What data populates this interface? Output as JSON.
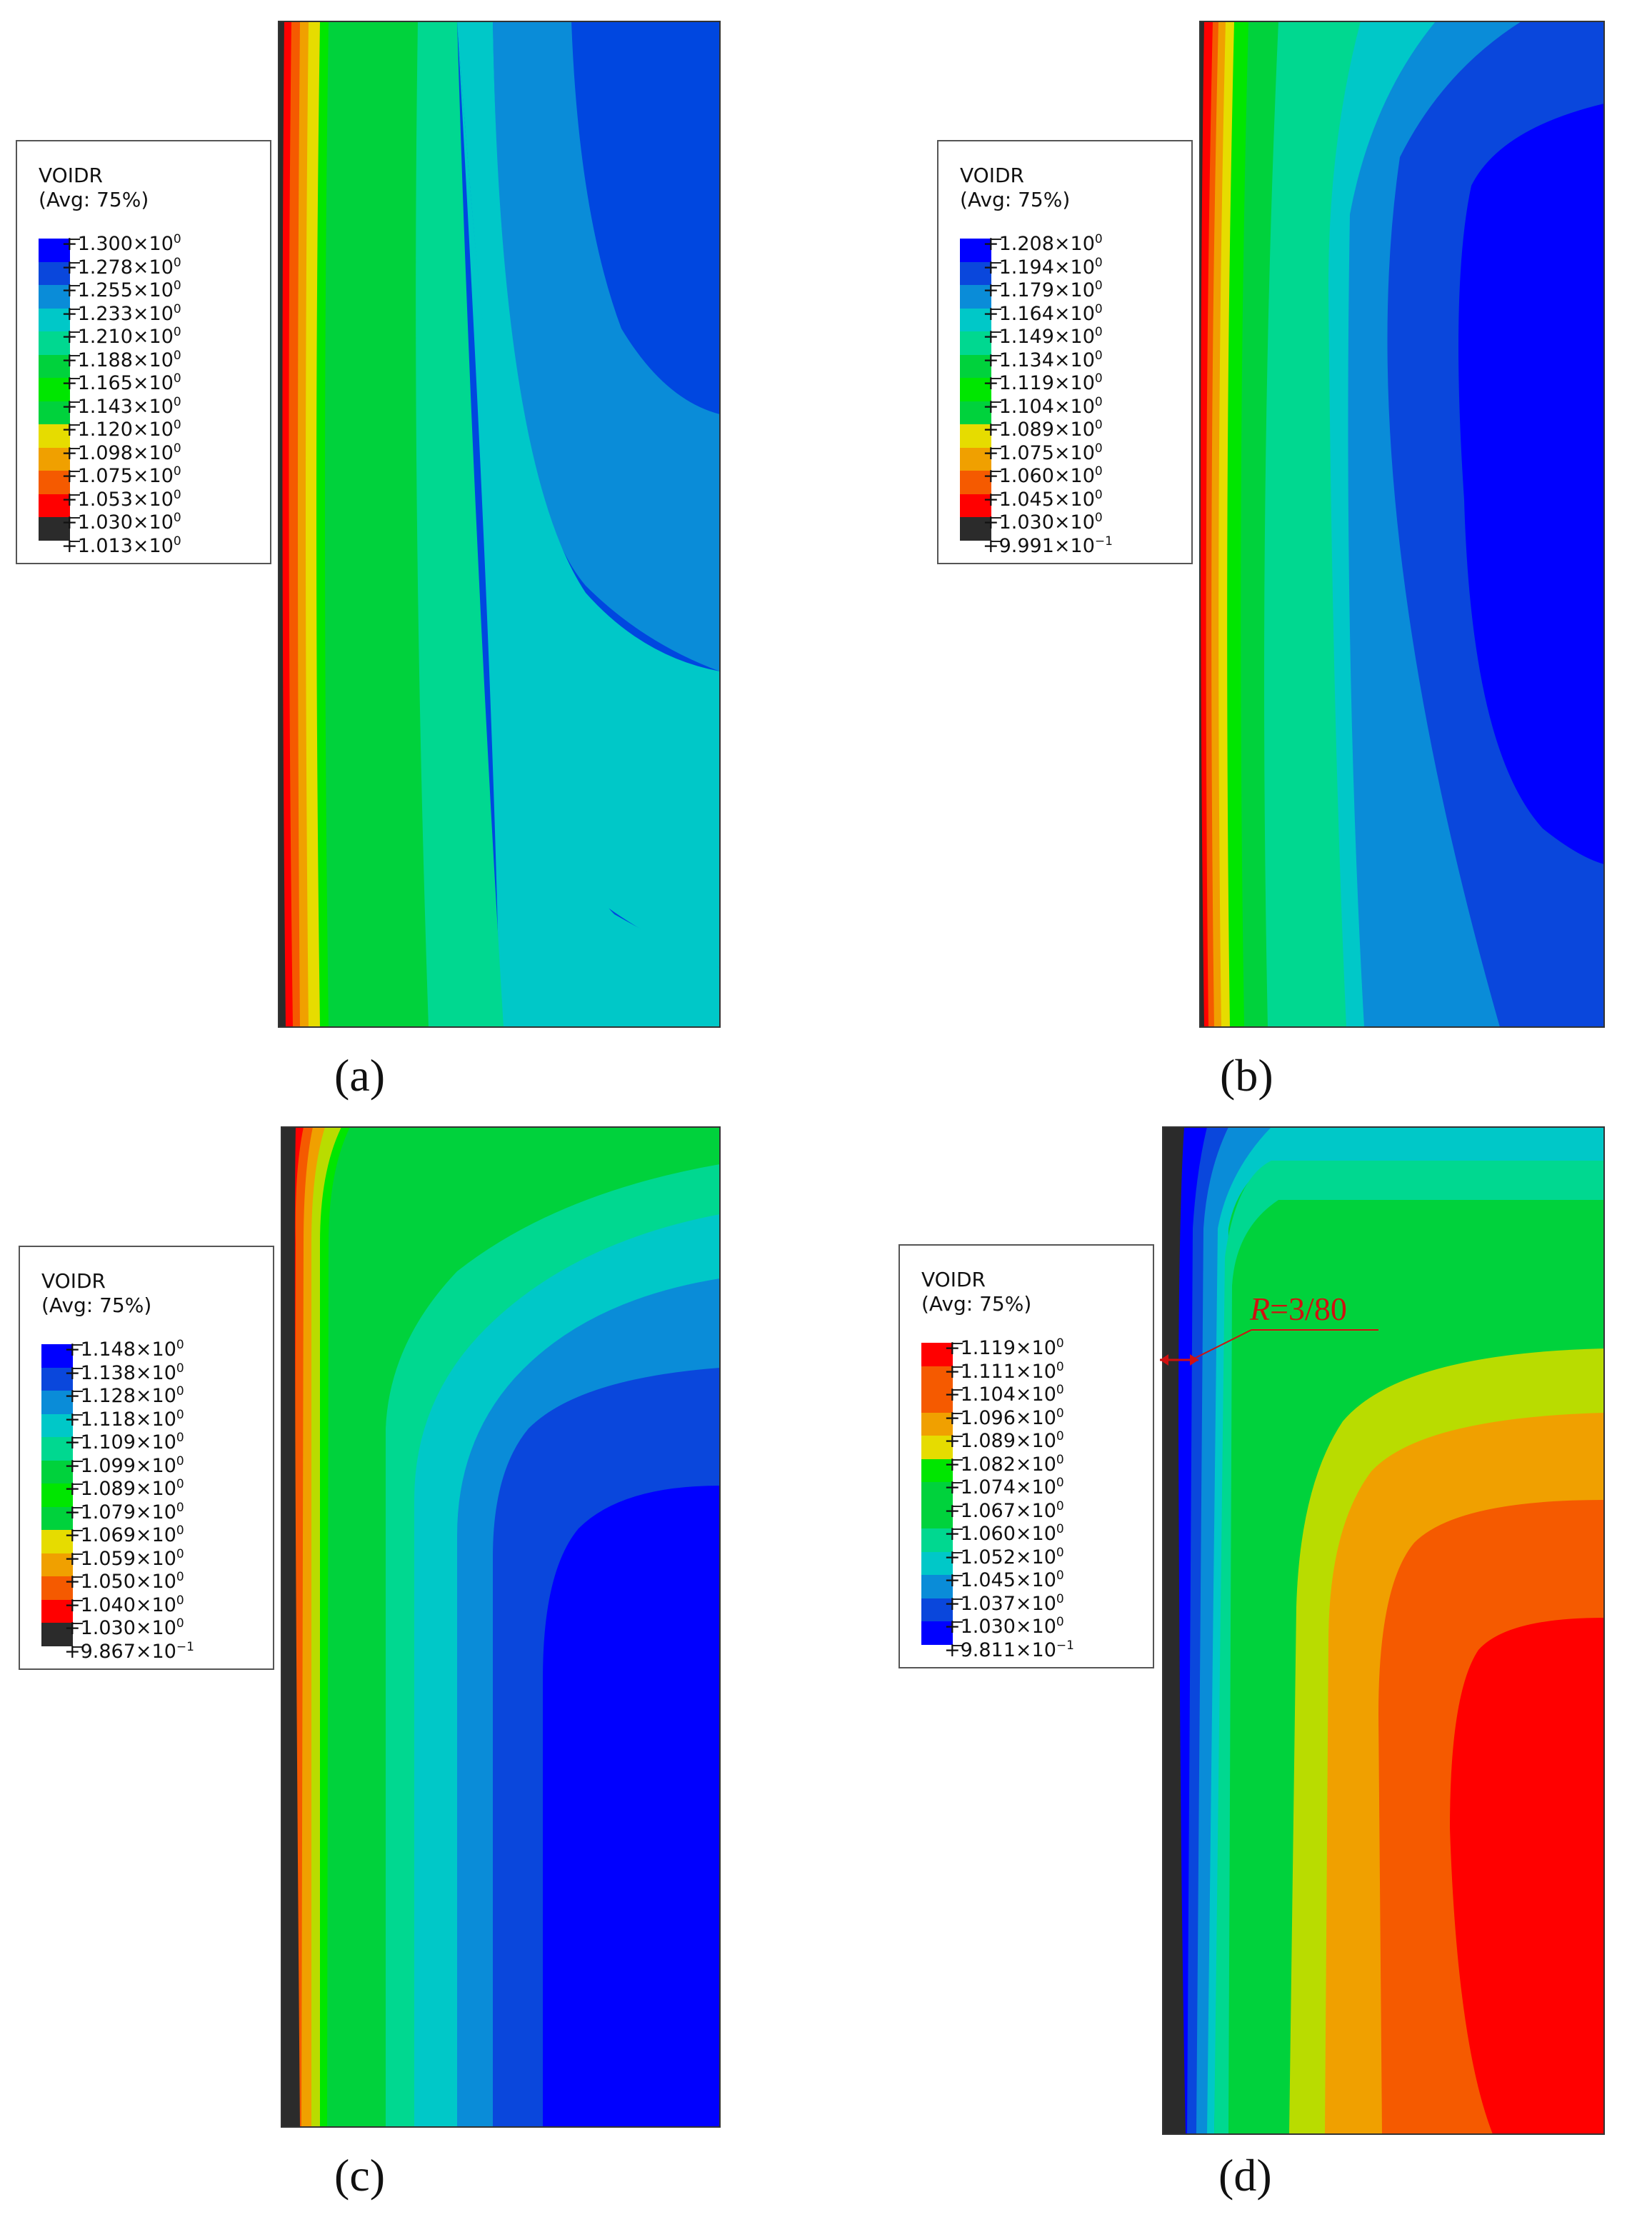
{
  "legend_title": "VOIDR",
  "legend_subtitle": "(Avg: 75%)",
  "colors": {
    "blue": "#0000ff",
    "blue2": "#0a47dc",
    "blue3": "#0a8cd8",
    "cyan": "#00c8c8",
    "cyan_green": "#00d890",
    "green": "#00d23c",
    "green2": "#00e600",
    "yellow_green": "#b9dc00",
    "yellow": "#e6dc00",
    "orange": "#f0a000",
    "orange_red": "#f55a00",
    "red": "#ff0000",
    "dark": "#2b2b2b"
  },
  "panels": [
    {
      "caption": "(a)",
      "legend_labels": [
        "+1.300×10",
        "+1.278×10",
        "+1.255×10",
        "+1.233×10",
        "+1.210×10",
        "+1.188×10",
        "+1.165×10",
        "+1.143×10",
        "+1.120×10",
        "+1.098×10",
        "+1.075×10",
        "+1.053×10",
        "+1.030×10",
        "+1.013×10"
      ],
      "legend_exponents": [
        "0",
        "0",
        "0",
        "0",
        "0",
        "0",
        "0",
        "0",
        "0",
        "0",
        "0",
        "0",
        "0",
        "0"
      ]
    },
    {
      "caption": "(b)",
      "legend_labels": [
        "+1.208×10",
        "+1.194×10",
        "+1.179×10",
        "+1.164×10",
        "+1.149×10",
        "+1.134×10",
        "+1.119×10",
        "+1.104×10",
        "+1.089×10",
        "+1.075×10",
        "+1.060×10",
        "+1.045×10",
        "+1.030×10",
        "+9.991×10"
      ],
      "legend_exponents": [
        "0",
        "0",
        "0",
        "0",
        "0",
        "0",
        "0",
        "0",
        "0",
        "0",
        "0",
        "0",
        "0",
        "−1"
      ]
    },
    {
      "caption": "(c)",
      "legend_labels": [
        "+1.148×10",
        "+1.138×10",
        "+1.128×10",
        "+1.118×10",
        "+1.109×10",
        "+1.099×10",
        "+1.089×10",
        "+1.079×10",
        "+1.069×10",
        "+1.059×10",
        "+1.050×10",
        "+1.040×10",
        "+1.030×10",
        "+9.867×10"
      ],
      "legend_exponents": [
        "0",
        "0",
        "0",
        "0",
        "0",
        "0",
        "0",
        "0",
        "0",
        "0",
        "0",
        "0",
        "0",
        "−1"
      ]
    },
    {
      "caption": "(d)",
      "legend_labels": [
        "+1.119×10",
        "+1.111×10",
        "+1.104×10",
        "+1.096×10",
        "+1.089×10",
        "+1.082×10",
        "+1.074×10",
        "+1.067×10",
        "+1.060×10",
        "+1.052×10",
        "+1.045×10",
        "+1.037×10",
        "+1.030×10",
        "+9.811×10"
      ],
      "legend_exponents": [
        "0",
        "0",
        "0",
        "0",
        "0",
        "0",
        "0",
        "0",
        "0",
        "0",
        "0",
        "0",
        "0",
        "−1"
      ],
      "annotation_italic": "R",
      "annotation_rest": "=3/80"
    }
  ]
}
